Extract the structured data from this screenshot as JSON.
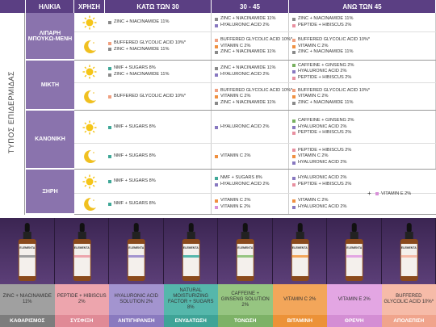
{
  "columns": [
    "ΗΛΙΚΙΑ",
    "ΧΡΗΣΗ",
    "ΚΑΤΩ ΤΩΝ 30",
    "30 - 45",
    "ΑΝΩ ΤΩΝ 45"
  ],
  "side_label": "ΤΥΠΟΣ ΕΠΙΔΕΡΜΙΔΑΣ",
  "skin_types": [
    {
      "name": "ΛΙΠΑΡΗ ΜΠΟΥΚΩ-ΜΕΝΗ",
      "uses": [
        [
          [
            {
              "text": "ZINC + NIACINAMIDE 11%",
              "color": "#8a8a8a"
            }
          ],
          [
            {
              "text": "ZINC + NIACINAMIDE 11%",
              "color": "#8a8a8a"
            },
            {
              "text": "HYALURONIC ACID 2%",
              "color": "#8878c0"
            }
          ],
          [
            {
              "text": "ZINC + NIACINAMIDE 11%",
              "color": "#8a8a8a"
            },
            {
              "text": "PEPTIDE + HIBISCUS 2%",
              "color": "#e890a0"
            }
          ]
        ],
        [
          [
            {
              "text": "BUFFERED GLYCOLIC ACID 10%*",
              "color": "#f0a080"
            },
            {
              "text": "ZINC + NIACINAMIDE 11%",
              "color": "#8a8a8a"
            }
          ],
          [
            {
              "text": "BUFFERED GLYCOLIC ACID 10%*",
              "color": "#f0a080"
            },
            {
              "text": "VITAMIN C 2%",
              "color": "#f09040"
            },
            {
              "text": "ZINC + NIACINAMIDE 11%",
              "color": "#8a8a8a"
            }
          ],
          [
            {
              "text": "BUFFERED GLYCOLIC ACID 10%*",
              "color": "#f0a080"
            },
            {
              "text": "VITAMIN C 2%",
              "color": "#f09040"
            },
            {
              "text": "ZINC + NIACINAMIDE 11%",
              "color": "#8a8a8a"
            }
          ]
        ]
      ]
    },
    {
      "name": "ΜΙΚΤΗ",
      "uses": [
        [
          [
            {
              "text": "NMF + SUGARS 8%",
              "color": "#40a898"
            },
            {
              "text": "ZINC + NIACINAMIDE 11%",
              "color": "#8a8a8a"
            }
          ],
          [
            {
              "text": "ZINC + NIACINAMIDE 11%",
              "color": "#8a8a8a"
            },
            {
              "text": "HYALURONIC ACID 2%",
              "color": "#8878c0"
            }
          ],
          [
            {
              "text": "CAFFEINE + GINSENG 2%",
              "color": "#78b060"
            },
            {
              "text": "HYALURONIC ACID 2%",
              "color": "#8878c0"
            },
            {
              "text": "PEPTIDE + HIBISCUS 2%",
              "color": "#e890a0"
            }
          ]
        ],
        [
          [
            {
              "text": "BUFFERED GLYCOLIC ACID 10%*",
              "color": "#f0a080"
            }
          ],
          [
            {
              "text": "BUFFERED GLYCOLIC ACID 10%*",
              "color": "#f0a080"
            },
            {
              "text": "VITAMIN C 2%",
              "color": "#f09040"
            },
            {
              "text": "ZINC + NIACINAMIDE 11%",
              "color": "#8a8a8a"
            }
          ],
          [
            {
              "text": "BUFFERED GLYCOLIC ACID 10%*",
              "color": "#f0a080"
            },
            {
              "text": "VITAMIN C 2%",
              "color": "#f09040"
            },
            {
              "text": "ZINC + NIACINAMIDE 11%",
              "color": "#8a8a8a"
            }
          ]
        ]
      ]
    },
    {
      "name": "ΚΑΝΟΝΙΚΗ",
      "uses": [
        [
          [
            {
              "text": "NMF + SUGARS 8%",
              "color": "#40a898"
            }
          ],
          [
            {
              "text": "HYALURONIC ACID 2%",
              "color": "#8878c0"
            }
          ],
          [
            {
              "text": "CAFFEINE + GINSENG 2%",
              "color": "#78b060"
            },
            {
              "text": "HYALURONIC ACID 2%",
              "color": "#8878c0"
            },
            {
              "text": "PEPTIDE + HIBISCUS 2%",
              "color": "#e890a0"
            }
          ]
        ],
        [
          [
            {
              "text": "NMF + SUGARS 8%",
              "color": "#40a898"
            }
          ],
          [
            {
              "text": "VITAMIN C 2%",
              "color": "#f09040"
            }
          ],
          [
            {
              "text": "PEPTIDE + HIBISCUS 2%",
              "color": "#e890a0"
            },
            {
              "text": "VITAMIN C 2%",
              "color": "#f09040"
            },
            {
              "text": "HYALURONIC ACID 2%",
              "color": "#8878c0"
            }
          ]
        ]
      ]
    },
    {
      "name": "ΞΗΡΗ",
      "uses": [
        [
          [
            {
              "text": "NMF + SUGARS 8%",
              "color": "#40a898"
            }
          ],
          [
            {
              "text": "NMF + SUGARS 8%",
              "color": "#40a898"
            },
            {
              "text": "HYALURONIC ACID 2%",
              "color": "#8878c0"
            }
          ],
          [
            {
              "text": "HYALURONIC ACID 2%",
              "color": "#8878c0"
            },
            {
              "text": "PEPTIDE + HIBISCUS 2%",
              "color": "#e890a0"
            }
          ]
        ],
        [
          [
            {
              "text": "NMF + SUGARS 8%",
              "color": "#40a898"
            }
          ],
          [
            {
              "text": "VITAMIN C 2%",
              "color": "#f09040"
            },
            {
              "text": "VITAMIN E 2%",
              "color": "#d890d8"
            }
          ],
          [
            {
              "text": "VITAMIN C 2%",
              "color": "#f09040"
            },
            {
              "text": "HYALURONIC ACID 2%",
              "color": "#8878c0"
            }
          ]
        ]
      ],
      "extra": {
        "plus": "+",
        "text": "VITAMIN E 2%",
        "color": "#d890d8"
      }
    }
  ],
  "brand": "ELEMENTA",
  "products": [
    {
      "name": "ZINC + NIACINAMIDE 11%",
      "category": "ΚΑΘΑΡΙΣΜΟΣ",
      "color": "#a0a0a0",
      "cat_color": "#7d7d7d"
    },
    {
      "name": "PEPTIDE + HIBISCUS 2%",
      "category": "ΣΥΣΦΙΞΗ",
      "color": "#eda5ad",
      "cat_color": "#e08a96"
    },
    {
      "name": "HYALURONIC ACID SOLUTION 2%",
      "category": "ΑΝΤΙΓΗΡΑΝΣΗ",
      "color": "#a394cf",
      "cat_color": "#8a7abf"
    },
    {
      "name": "NATURAL MOISTURIZING FACTOR + SUGARS 8%",
      "category": "ΕΝΥΔΑΤΩΣΗ",
      "color": "#55b7ab",
      "cat_color": "#3fa497"
    },
    {
      "name": "CAFFEINE + GINSENG SOLUTION 2%",
      "category": "ΤΟΝΩΣΗ",
      "color": "#96c581",
      "cat_color": "#7db267"
    },
    {
      "name": "VITAMIN C 2%",
      "category": "ΒΙΤΑΜΙΝΗ",
      "color": "#f3a65a",
      "cat_color": "#ec9238"
    },
    {
      "name": "VITAMIN E 2%",
      "category": "ΘΡΕΨΗ",
      "color": "#e3a6e3",
      "cat_color": "#d48ed4"
    },
    {
      "name": "BUFFERED GLYCOLIC ACID 10%*",
      "category": "ΑΠΟΛΕΠΙΣΗ",
      "color": "#f6bba8",
      "cat_color": "#f0a48c"
    }
  ]
}
